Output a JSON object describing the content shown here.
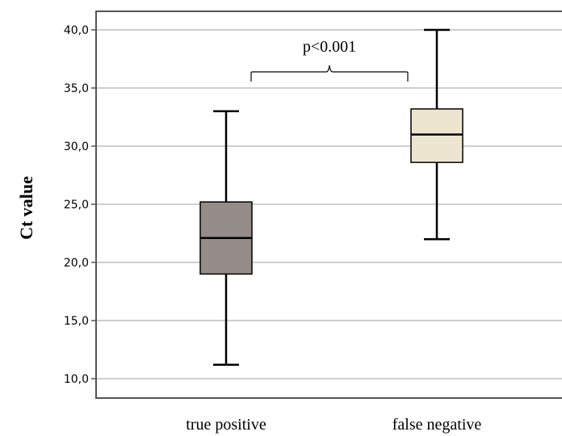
{
  "chart_data": {
    "type": "boxplot",
    "title": "",
    "xlabel": "",
    "ylabel": "Ct value",
    "ylim": [
      8.5,
      42
    ],
    "yticks": [
      10.0,
      15.0,
      20.0,
      25.0,
      30.0,
      35.0,
      40.0
    ],
    "ytick_labels": [
      "10,0",
      "15,0",
      "20,0",
      "25,0",
      "30,0",
      "35,0",
      "40,0"
    ],
    "grid": "horizontal",
    "categories": [
      "true positive",
      "false negative"
    ],
    "boxes": [
      {
        "category": "true positive",
        "min": 11.2,
        "q1": 19.0,
        "median": 22.1,
        "q3": 25.2,
        "max": 33.0,
        "color": "#938c89"
      },
      {
        "category": "false negative",
        "min": 22.0,
        "q1": 28.6,
        "median": 31.0,
        "q3": 33.2,
        "max": 40.0,
        "color": "#ede5cf"
      }
    ],
    "annotation": {
      "text": "p<0.001",
      "type": "bracket",
      "between": [
        "true positive",
        "false negative"
      ],
      "level": 36.3
    }
  }
}
